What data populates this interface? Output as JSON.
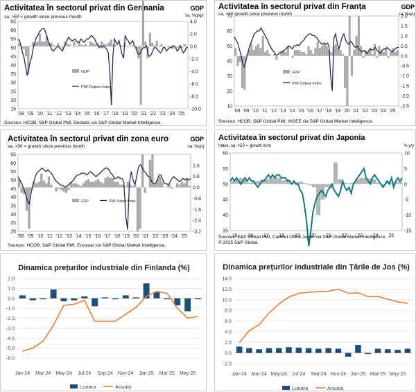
{
  "chart_data": [
    {
      "id": "de",
      "type": "bar+line",
      "title": "Activitatea în sectorul privat din Germania",
      "subtitle": "sa, >50 = growth since previous month",
      "right_label": "GDP",
      "right_sublabel": "sa, %q/q/r",
      "ylim_left": [
        15,
        65
      ],
      "yticks_left": [
        15,
        20,
        25,
        30,
        35,
        40,
        45,
        50,
        55,
        60,
        65
      ],
      "ylim_right": [
        -10,
        4
      ],
      "yticks_right": [
        "-10.0",
        "-8.0",
        "-6.0",
        "-4.0",
        "-2.0",
        "0.0",
        "2.0",
        "4.0"
      ],
      "xticks": [
        "'08",
        "'09",
        "'10",
        "'11",
        "'12",
        "'13",
        "'14",
        "'15",
        "'16",
        "'17",
        "'18",
        "'19",
        "'20",
        "'21",
        "'22",
        "'23",
        "'24",
        "'25"
      ],
      "legend": [
        "GDP",
        "PMI Output Index"
      ],
      "source": "Sources: HCOB, S&P Global PMI, Destatis via S&P Global Market Intelligence.",
      "gdp": [
        0.5,
        -0.5,
        -0.4,
        -1.6,
        -4.5,
        0.1,
        0.7,
        0.6,
        0.8,
        2.0,
        0.8,
        0.8,
        1.7,
        0.6,
        0.6,
        0.2,
        -0.1,
        0.5,
        0.1,
        -0.4,
        0.8,
        0.4,
        0.3,
        0.0,
        0.8,
        -0.1,
        0.7,
        0.3,
        0.2,
        0.4,
        0.1,
        0.8,
        0.6,
        0.4,
        0.5,
        0.2,
        0.8,
        0.4,
        0.3,
        0.6,
        1.1,
        0.3,
        0.3,
        0.0,
        0.2,
        -0.1,
        0.5,
        -0.1,
        0.1,
        0.2,
        0.1,
        -0.5,
        -1.9,
        -9.4,
        8.5,
        0.8,
        -1.9,
        2.2,
        0.6,
        0.2,
        0.9,
        -0.1,
        0.4,
        -0.3,
        0.0,
        -0.1,
        0.1,
        -0.4,
        0.1,
        -0.3,
        0.2,
        -0.2,
        0.4,
        -0.1
      ],
      "pmi": [
        55,
        54,
        51,
        47,
        44,
        39,
        34,
        38,
        42,
        45,
        50,
        53,
        56,
        57,
        59,
        60,
        61,
        61,
        59,
        56,
        53,
        51,
        49,
        48,
        49,
        50,
        51,
        50,
        49,
        48,
        50,
        52,
        54,
        56,
        55,
        54,
        54,
        55,
        54,
        53,
        53,
        55,
        54,
        53,
        54,
        55,
        55,
        56,
        57,
        56,
        55,
        53,
        52,
        50,
        51,
        50,
        51,
        50,
        49,
        47,
        36,
        17,
        45,
        55,
        53,
        52,
        54,
        50,
        46,
        44,
        57,
        55,
        54,
        52,
        53,
        54,
        51,
        50,
        47,
        46,
        47,
        49,
        50,
        50,
        51,
        46,
        45,
        46,
        48,
        50,
        50,
        49,
        48,
        47,
        48,
        50,
        50,
        48,
        49,
        50,
        50,
        51,
        51,
        50,
        48,
        49,
        51,
        49,
        47,
        48,
        50,
        50
      ],
      "colors": {
        "bar": "#a8a8a8",
        "line": "#232a5c"
      }
    },
    {
      "id": "fr",
      "type": "bar+line",
      "title": "Activitatea în sectorul privat din Franța",
      "subtitle": "sa, >50 growth since previous month",
      "right_label": "GDP",
      "right_sublabel": "sa, %q/q",
      "ylim_left": [
        10,
        70
      ],
      "yticks_left": [
        10,
        20,
        30,
        40,
        50,
        60,
        70
      ],
      "ylim_right": [
        -2.5,
        2
      ],
      "yticks_right": [
        "-2.5",
        "-2.0",
        "-1.5",
        "-1.0",
        "-0.5",
        "0.0",
        "0.5",
        "1.0",
        "1.5",
        "2.0"
      ],
      "xticks": [
        "'08",
        "'09",
        "'10",
        "'11",
        "'12",
        "'13",
        "'14",
        "'15",
        "'16",
        "'17",
        "'18",
        "'19",
        "'20",
        "'21",
        "'22",
        "'23",
        "'24",
        "'25"
      ],
      "legend": [
        "GDP",
        "PMI Output Index"
      ],
      "source": "Sources: HCOB, S&P Global PMI, INSEE via S&P Global Market Intelligence.",
      "gdp": [
        0.4,
        -0.5,
        -0.3,
        -1.6,
        -1.7,
        0.1,
        0.3,
        0.6,
        0.3,
        0.5,
        0.6,
        0.4,
        1.0,
        0.2,
        0.3,
        0.1,
        0.0,
        0.1,
        -0.2,
        0.0,
        0.2,
        0.3,
        0.2,
        0.5,
        0.0,
        -0.1,
        0.3,
        0.3,
        0.3,
        0.2,
        0.2,
        0.1,
        0.5,
        0.3,
        0.1,
        0.4,
        0.7,
        0.4,
        0.5,
        0.6,
        0.5,
        0.3,
        0.2,
        0.5,
        0.6,
        0.4,
        0.3,
        0.1,
        -1.6,
        -2.5,
        2.0,
        -1.0,
        0.3,
        1.0,
        2.0,
        0.5,
        -0.1,
        0.3,
        0.2,
        0.4,
        0.1,
        0.6,
        -0.1,
        0.5,
        0.3,
        0.2,
        0.4,
        -0.1,
        0.2,
        0.4,
        0.2,
        0.3
      ],
      "pmi": [
        56,
        54,
        52,
        48,
        44,
        38,
        36,
        40,
        45,
        49,
        52,
        55,
        58,
        59,
        60,
        60,
        62,
        60,
        58,
        56,
        54,
        51,
        49,
        47,
        46,
        44,
        44,
        45,
        46,
        46,
        47,
        48,
        49,
        50,
        49,
        48,
        50,
        50,
        51,
        50,
        52,
        53,
        54,
        56,
        57,
        58,
        58,
        57,
        57,
        56,
        55,
        53,
        52,
        51,
        52,
        51,
        52,
        50,
        30,
        20,
        55,
        58,
        52,
        48,
        52,
        56,
        58,
        54,
        52,
        51,
        53,
        52,
        50,
        49,
        50,
        48,
        47,
        46,
        47,
        46,
        45,
        47,
        48,
        47,
        48,
        49,
        47,
        46,
        45,
        47,
        48,
        48,
        49,
        48,
        47,
        46,
        47,
        48,
        49,
        49
      ],
      "colors": {
        "bar": "#a8a8a8",
        "line": "#232a5c"
      }
    },
    {
      "id": "ez",
      "type": "bar+line",
      "title": "Activitatea în sectorul privat din zona euro",
      "subtitle": "sa, >50 = growth since previous month",
      "right_label": "GDP",
      "right_sublabel": "sa, %q/q",
      "ylim_left": [
        20,
        65
      ],
      "yticks_left": [
        20,
        25,
        30,
        35,
        40,
        45,
        50,
        55,
        60,
        65
      ],
      "ylim_right": [
        -3.2,
        2.4
      ],
      "yticks_right": [
        "-3.2",
        "-2.4",
        "-1.6",
        "-0.8",
        "0.0",
        "0.8",
        "1.6"
      ],
      "xticks": [
        "'08",
        "'09",
        "'10",
        "'11",
        "'12",
        "'13",
        "'14",
        "'15",
        "'16",
        "'17",
        "'18",
        "'19",
        "'20",
        "'21",
        "'22",
        "'23",
        "'24",
        "'25"
      ],
      "legend": [
        "GDP",
        "PMI Output Index"
      ],
      "source": "Sources: HCOB, S&P Global PMI, Eurostat via S&P Global Market Intelligence.",
      "gdp": [
        0.6,
        -0.4,
        -0.5,
        -1.7,
        -3.0,
        -0.2,
        0.4,
        0.3,
        0.4,
        1.0,
        0.5,
        0.3,
        0.8,
        0.2,
        0.0,
        -0.3,
        -0.1,
        -0.2,
        -0.3,
        -0.4,
        -0.2,
        0.4,
        0.3,
        0.3,
        0.2,
        0.1,
        0.3,
        0.5,
        0.6,
        0.4,
        0.4,
        0.5,
        0.6,
        0.4,
        0.3,
        0.7,
        0.8,
        0.7,
        0.7,
        0.4,
        0.4,
        0.2,
        0.2,
        0.1,
        0.4,
        0.2,
        0.1,
        0.1,
        -3.2,
        -3.0,
        2.4,
        -0.4,
        0.0,
        2.0,
        2.4,
        0.3,
        0.6,
        0.8,
        0.4,
        0.0,
        0.1,
        0.2,
        -0.1,
        0.0,
        0.3,
        0.2,
        0.4,
        0.3,
        0.6,
        0.1
      ],
      "pmi": [
        52,
        50,
        48,
        45,
        42,
        38,
        36,
        42,
        47,
        51,
        54,
        55,
        56,
        57,
        56,
        55,
        56,
        55,
        54,
        52,
        50,
        49,
        48,
        47,
        47,
        46,
        46,
        47,
        48,
        49,
        50,
        52,
        53,
        53,
        54,
        54,
        54,
        53,
        54,
        55,
        54,
        53,
        52,
        53,
        54,
        55,
        56,
        57,
        57,
        56,
        54,
        53,
        51,
        51,
        52,
        51,
        51,
        49,
        29,
        21,
        48,
        55,
        50,
        47,
        53,
        58,
        59,
        57,
        55,
        54,
        52,
        52,
        49,
        48,
        48,
        50,
        53,
        53,
        50,
        48,
        48,
        47,
        49,
        51,
        52,
        51,
        50,
        49,
        50,
        51,
        50,
        51,
        50,
        51
      ],
      "colors": {
        "bar": "#a8a8a8",
        "line": "#232a5c"
      }
    },
    {
      "id": "jp",
      "type": "bar+line",
      "title": "Activitatea în sectorul privat din Japonia",
      "subtitle": "Index, sa, >50 = growth m/m",
      "right_label": "% y/y",
      "ylim_left": [
        35,
        60
      ],
      "yticks_left": [
        35,
        40,
        45,
        50,
        55,
        60
      ],
      "ylim_right": [
        -15,
        10
      ],
      "yticks_right": [
        "-15",
        "-10",
        "-5",
        "0",
        "5",
        "10"
      ],
      "xticks": [
        "15",
        "16",
        "17",
        "18",
        "19",
        "20",
        "21",
        "22",
        "23",
        "24",
        "25"
      ],
      "source": "Sources: S&P Global PMI, Cabinet Office Japan via S&P Global Market Intelligence.\n© 2025 S&P Global.",
      "gdp": [
        1.0,
        1.5,
        2.0,
        1.5,
        0.5,
        0.8,
        1.0,
        1.5,
        1.6,
        2.0,
        2.2,
        2.0,
        1.2,
        1.5,
        0.5,
        0.6,
        0.8,
        0.3,
        -0.3,
        -1.0,
        -10.0,
        -5.0,
        -1.0,
        -1.5,
        7.0,
        1.5,
        0.5,
        0.3,
        0.5,
        1.5,
        2.0,
        2.0,
        1.8,
        1.5,
        0.5,
        -0.5,
        1.0,
        0.5,
        0.8,
        1.0
      ],
      "pmi": [
        51,
        52,
        51,
        52,
        51,
        50,
        51,
        52,
        51,
        52,
        51,
        51,
        50,
        49,
        50,
        51,
        51,
        52,
        53,
        52,
        53,
        52,
        53,
        53,
        52,
        52,
        52,
        51,
        51,
        50,
        51,
        50,
        50,
        48,
        47,
        43,
        38,
        30,
        35,
        41,
        44,
        46,
        47,
        48,
        47,
        46,
        48,
        49,
        50,
        48,
        47,
        46,
        48,
        51,
        49,
        48,
        49,
        47,
        50,
        51,
        52,
        53,
        54,
        55,
        52,
        51,
        50,
        52,
        53,
        52,
        51,
        50,
        49,
        50,
        51,
        50,
        52,
        49,
        51,
        52,
        51,
        52
      ],
      "colors": {
        "bar": "#b5b5b5",
        "line": "#0f7a84"
      }
    },
    {
      "id": "fi",
      "type": "bar+line",
      "title": "Dinamica prețurilor industriale din Finlanda (%)",
      "ylim": [
        -6,
        2
      ],
      "yticks": [
        "2.0",
        "1.0",
        "0.0",
        "-1.0",
        "-2.0",
        "-3.0",
        "-4.0",
        "-5.0",
        "-6.0"
      ],
      "x": [
        "Jan-24",
        "Feb-24",
        "Mar-24",
        "Apr-24",
        "May-24",
        "Jun-24",
        "Jul-24",
        "Aug-24",
        "Sep-24",
        "Oct-24",
        "Nov-24",
        "Dec-24",
        "Jan-25",
        "Feb-25",
        "Mar-25",
        "Apr-25",
        "May-25",
        "Jun-25"
      ],
      "xticks": [
        "Jan-24",
        "Mar-24",
        "May-24",
        "Jul-24",
        "Sep-24",
        "Nov-24",
        "Jan-25",
        "Mar-25",
        "May-25"
      ],
      "series": [
        {
          "name": "Lunara",
          "values": [
            0.3,
            -0.2,
            -0.1,
            0.9,
            -0.3,
            -0.2,
            0.2,
            -0.8,
            0.1,
            -0.1,
            0.3,
            0.1,
            1.5,
            0.6,
            -0.1,
            -0.7,
            -1.3,
            -0.1
          ]
        },
        {
          "name": "Anuala",
          "values": [
            -5.3,
            -5.0,
            -4.3,
            -2.7,
            -0.7,
            -0.6,
            -0.2,
            -2.3,
            -2.3,
            -2.3,
            -1.6,
            -0.9,
            0.2,
            0.7,
            0.5,
            -1.0,
            -2.0,
            -1.8
          ]
        }
      ],
      "colors": {
        "bar": "#1f4e79",
        "line": "#ed7d31"
      }
    },
    {
      "id": "nl",
      "type": "bar+line",
      "title": "Dinamica prețurilor industriale din Țările de Jos (%)",
      "ylim": [
        -2,
        14
      ],
      "yticks": [
        "14.0",
        "12.0",
        "10.0",
        "8.0",
        "6.0",
        "4.0",
        "2.0",
        "0.0",
        "-2.0"
      ],
      "x": [
        "Jan-24",
        "Feb-24",
        "Mar-24",
        "Apr-24",
        "May-24",
        "Jun-24",
        "Jul-24",
        "Aug-24",
        "Sep-24",
        "Oct-24",
        "Nov-24",
        "Dec-24",
        "Jan-25",
        "Feb-25",
        "Mar-25",
        "Apr-25",
        "May-25",
        "Jun-25"
      ],
      "xticks": [
        "Jan-24",
        "Mar-24",
        "May-24",
        "Jul-24",
        "Sep-24",
        "Nov-24",
        "Jan-25",
        "Mar-25",
        "May-25"
      ],
      "series": [
        {
          "name": "Lunara",
          "values": [
            1.2,
            0.9,
            0.7,
            0.9,
            0.9,
            1.1,
            1.0,
            0.9,
            0.8,
            0.9,
            0.8,
            -0.7,
            1.5,
            -0.2,
            0.8,
            0.7,
            0.6,
            0.8
          ]
        },
        {
          "name": "Anuala",
          "values": [
            1.9,
            4.2,
            5.3,
            7.5,
            9.2,
            10.5,
            11.2,
            11.4,
            11.5,
            11.6,
            12.0,
            11.2,
            11.3,
            10.6,
            10.6,
            10.1,
            9.6,
            9.3
          ]
        }
      ],
      "colors": {
        "bar": "#1f4e79",
        "line": "#ed7d31"
      }
    }
  ]
}
